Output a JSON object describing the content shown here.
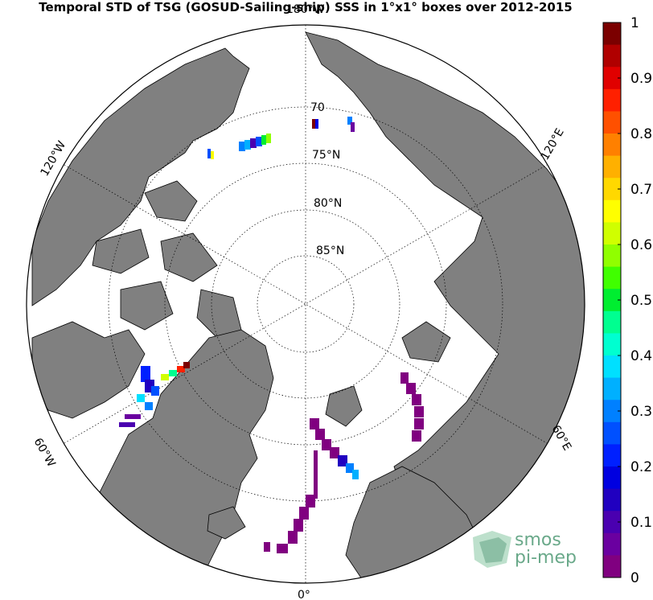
{
  "title": "Temporal STD of TSG (GOSUD-Sailing-ship) SSS in 1°x1° boxes over 2012-2015",
  "map": {
    "projection": "north polar stereographic",
    "lat_labels": [
      "70",
      "75°N",
      "80°N",
      "85°N"
    ],
    "lon_labels": [
      "180°W",
      "120°W",
      "120°E",
      "60°W",
      "60°E",
      "0°"
    ],
    "land_color": "#808080",
    "ocean_color": "#ffffff"
  },
  "colorbar": {
    "min": 0,
    "max": 1,
    "tick_labels": [
      "1",
      "0.9",
      "0.8",
      "0.7",
      "0.6",
      "0.5",
      "0.4",
      "0.3",
      "0.2",
      "0.1",
      "0"
    ],
    "colors": [
      "#7b0000",
      "#b00000",
      "#e00000",
      "#ff2000",
      "#ff5000",
      "#ff8000",
      "#ffb000",
      "#ffd800",
      "#ffff00",
      "#d0ff00",
      "#90ff00",
      "#40ff00",
      "#00ee30",
      "#00ff90",
      "#00ffd0",
      "#00e0ff",
      "#00b0ff",
      "#0080ff",
      "#0050ff",
      "#0020ff",
      "#0000e0",
      "#2000c0",
      "#4a00b0",
      "#6a00a0",
      "#800080"
    ]
  },
  "logo": {
    "line1": "smos",
    "line2": "pi-mep"
  }
}
